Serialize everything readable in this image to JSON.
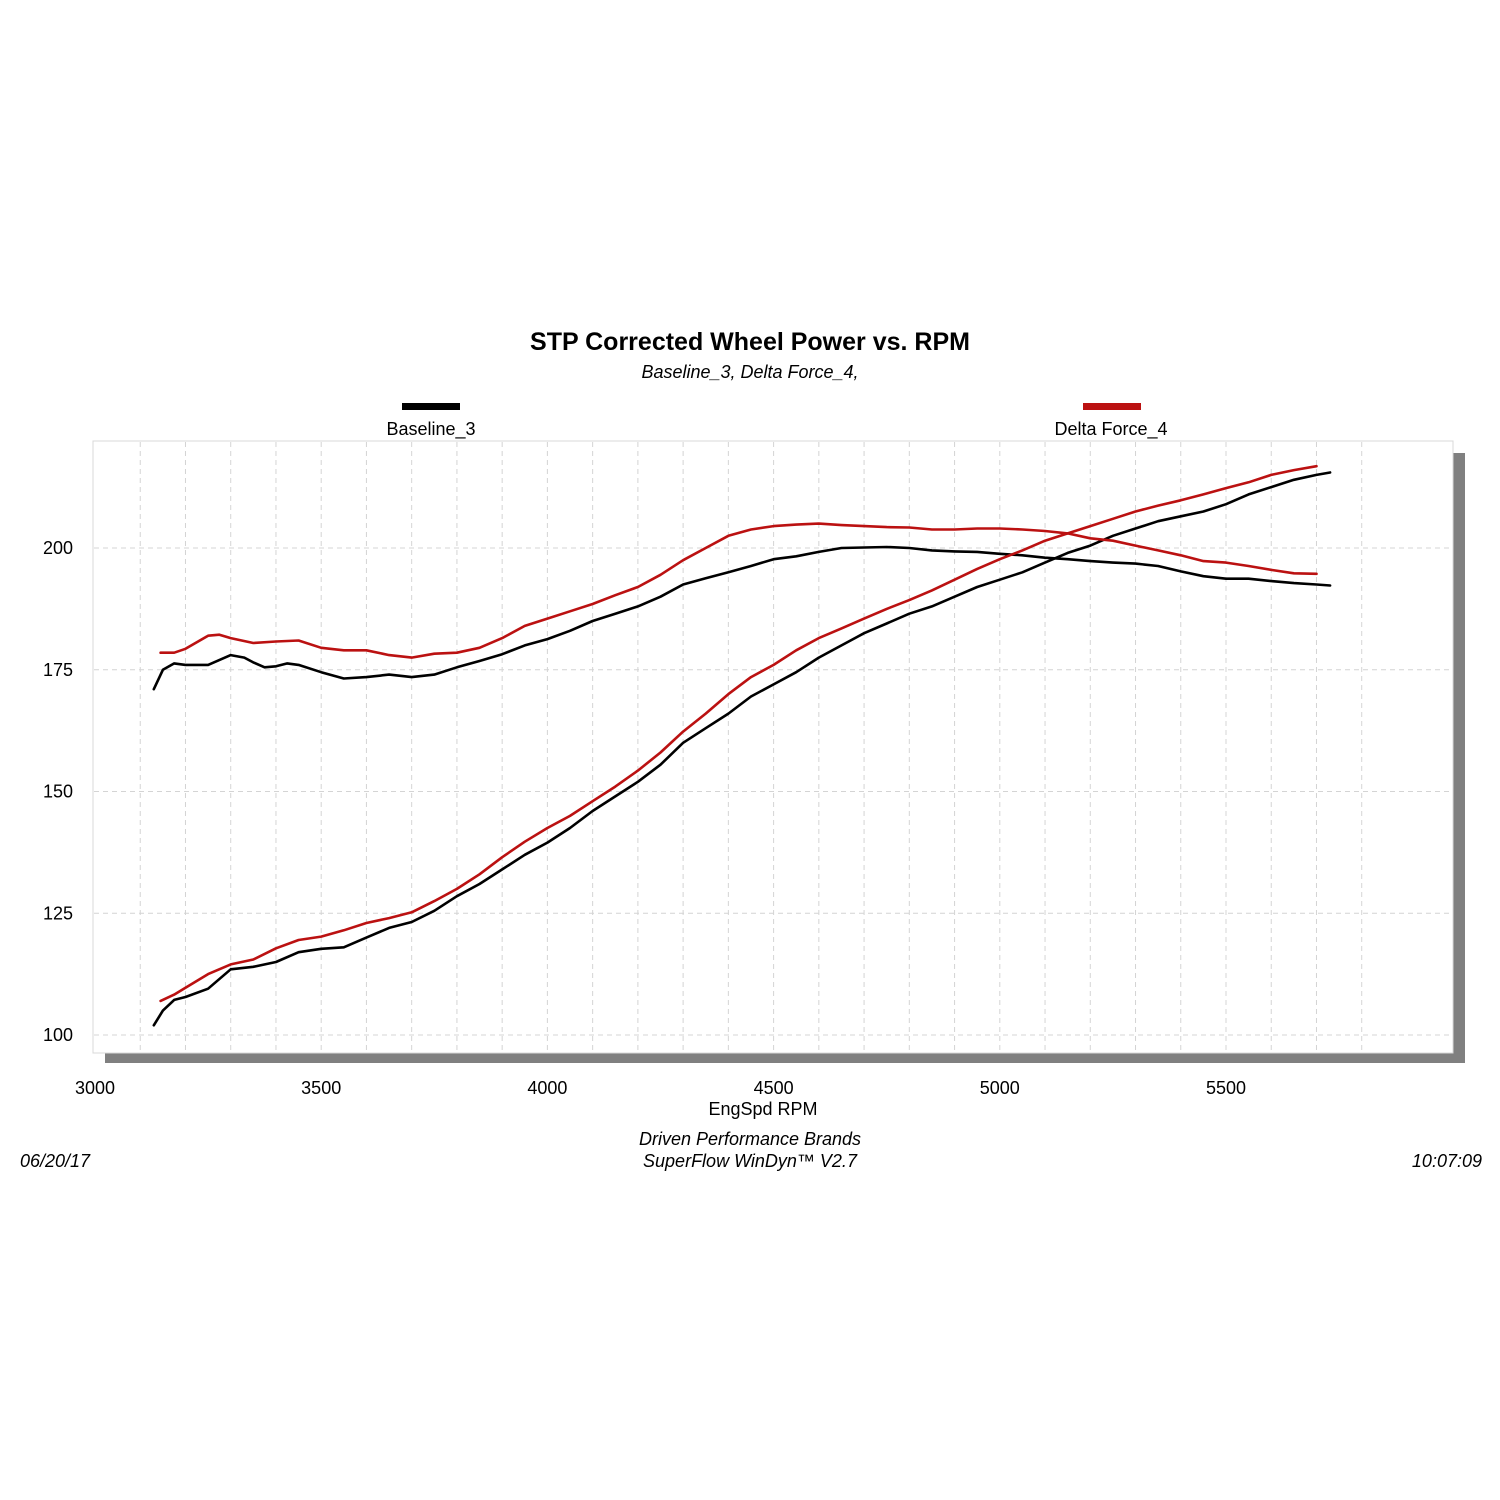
{
  "colors": {
    "baseline": "#000000",
    "delta": "#bb1111",
    "grid": "#d4d4d4",
    "frame": "#d8d8d8",
    "shadow": "#808080"
  },
  "footer": {
    "date": "06/20/17",
    "brand": "Driven Performance Brands",
    "software": "SuperFlow WinDyn™  V2.7",
    "time": "10:07:09"
  },
  "chart_data": {
    "type": "line",
    "title": "STP Corrected Wheel Power vs. RPM",
    "subtitle": "Baseline_3, Delta Force_4,",
    "xlabel": "EngSpd  RPM",
    "ylabel": "",
    "xlim": [
      3000,
      5850
    ],
    "ylim": [
      95,
      220
    ],
    "xticks": [
      3000,
      3500,
      4000,
      4500,
      5000,
      5500
    ],
    "yticks": [
      100,
      125,
      150,
      175,
      200
    ],
    "grid": true,
    "legend_placement": "top",
    "series": [
      {
        "name": "Baseline_3",
        "color_key": "baseline",
        "curves": [
          {
            "label": "power",
            "points": [
              [
                3130,
                102
              ],
              [
                3150,
                105
              ],
              [
                3175,
                107.2
              ],
              [
                3200,
                107.8
              ],
              [
                3250,
                109.5
              ],
              [
                3300,
                113.5
              ],
              [
                3350,
                114
              ],
              [
                3400,
                115
              ],
              [
                3450,
                117
              ],
              [
                3500,
                117.7
              ],
              [
                3550,
                118
              ],
              [
                3600,
                120
              ],
              [
                3650,
                122
              ],
              [
                3700,
                123.2
              ],
              [
                3750,
                125.5
              ],
              [
                3800,
                128.5
              ],
              [
                3850,
                131
              ],
              [
                3900,
                134
              ],
              [
                3950,
                137
              ],
              [
                4000,
                139.5
              ],
              [
                4050,
                142.5
              ],
              [
                4100,
                146
              ],
              [
                4150,
                149
              ],
              [
                4200,
                152
              ],
              [
                4250,
                155.5
              ],
              [
                4300,
                160
              ],
              [
                4350,
                163
              ],
              [
                4400,
                166
              ],
              [
                4450,
                169.5
              ],
              [
                4500,
                172
              ],
              [
                4550,
                174.5
              ],
              [
                4600,
                177.5
              ],
              [
                4650,
                180
              ],
              [
                4700,
                182.5
              ],
              [
                4750,
                184.5
              ],
              [
                4800,
                186.5
              ],
              [
                4850,
                188
              ],
              [
                4900,
                190
              ],
              [
                4950,
                192
              ],
              [
                5000,
                193.5
              ],
              [
                5050,
                195
              ],
              [
                5100,
                197
              ],
              [
                5150,
                199
              ],
              [
                5200,
                200.5
              ],
              [
                5250,
                202.5
              ],
              [
                5300,
                204
              ],
              [
                5350,
                205.5
              ],
              [
                5400,
                206.5
              ],
              [
                5450,
                207.5
              ],
              [
                5500,
                209
              ],
              [
                5550,
                211
              ],
              [
                5600,
                212.5
              ],
              [
                5650,
                214
              ],
              [
                5700,
                215
              ],
              [
                5730,
                215.5
              ]
            ]
          },
          {
            "label": "torque",
            "points": [
              [
                3130,
                171
              ],
              [
                3150,
                175
              ],
              [
                3175,
                176.3
              ],
              [
                3200,
                176
              ],
              [
                3250,
                176
              ],
              [
                3300,
                178
              ],
              [
                3330,
                177.5
              ],
              [
                3350,
                176.5
              ],
              [
                3375,
                175.5
              ],
              [
                3400,
                175.7
              ],
              [
                3425,
                176.3
              ],
              [
                3450,
                176
              ],
              [
                3500,
                174.5
              ],
              [
                3550,
                173.2
              ],
              [
                3600,
                173.5
              ],
              [
                3650,
                174
              ],
              [
                3700,
                173.5
              ],
              [
                3750,
                174
              ],
              [
                3800,
                175.5
              ],
              [
                3850,
                176.8
              ],
              [
                3900,
                178.2
              ],
              [
                3950,
                180
              ],
              [
                4000,
                181.3
              ],
              [
                4050,
                183
              ],
              [
                4100,
                185
              ],
              [
                4150,
                186.5
              ],
              [
                4200,
                188
              ],
              [
                4250,
                190
              ],
              [
                4300,
                192.5
              ],
              [
                4350,
                193.8
              ],
              [
                4400,
                195
              ],
              [
                4450,
                196.3
              ],
              [
                4500,
                197.7
              ],
              [
                4550,
                198.3
              ],
              [
                4600,
                199.2
              ],
              [
                4650,
                200
              ],
              [
                4700,
                200.1
              ],
              [
                4750,
                200.2
              ],
              [
                4800,
                200
              ],
              [
                4850,
                199.5
              ],
              [
                4900,
                199.3
              ],
              [
                4950,
                199.2
              ],
              [
                5000,
                198.8
              ],
              [
                5050,
                198.5
              ],
              [
                5100,
                198
              ],
              [
                5150,
                197.7
              ],
              [
                5200,
                197.3
              ],
              [
                5250,
                197
              ],
              [
                5300,
                196.8
              ],
              [
                5350,
                196.3
              ],
              [
                5400,
                195.2
              ],
              [
                5450,
                194.2
              ],
              [
                5500,
                193.7
              ],
              [
                5550,
                193.7
              ],
              [
                5600,
                193.2
              ],
              [
                5650,
                192.8
              ],
              [
                5700,
                192.5
              ],
              [
                5730,
                192.3
              ]
            ]
          }
        ]
      },
      {
        "name": "Delta Force_4",
        "color_key": "delta",
        "curves": [
          {
            "label": "power",
            "points": [
              [
                3145,
                107
              ],
              [
                3175,
                108.3
              ],
              [
                3200,
                109.7
              ],
              [
                3250,
                112.5
              ],
              [
                3300,
                114.5
              ],
              [
                3350,
                115.5
              ],
              [
                3400,
                117.8
              ],
              [
                3450,
                119.5
              ],
              [
                3500,
                120.2
              ],
              [
                3550,
                121.5
              ],
              [
                3600,
                123
              ],
              [
                3650,
                124
              ],
              [
                3700,
                125.2
              ],
              [
                3750,
                127.5
              ],
              [
                3800,
                130
              ],
              [
                3850,
                133
              ],
              [
                3900,
                136.5
              ],
              [
                3950,
                139.7
              ],
              [
                4000,
                142.5
              ],
              [
                4050,
                145
              ],
              [
                4100,
                148
              ],
              [
                4150,
                151
              ],
              [
                4200,
                154.3
              ],
              [
                4250,
                158
              ],
              [
                4300,
                162.3
              ],
              [
                4350,
                166
              ],
              [
                4400,
                170
              ],
              [
                4450,
                173.5
              ],
              [
                4500,
                176
              ],
              [
                4550,
                179
              ],
              [
                4600,
                181.5
              ],
              [
                4650,
                183.5
              ],
              [
                4700,
                185.5
              ],
              [
                4750,
                187.5
              ],
              [
                4800,
                189.3
              ],
              [
                4850,
                191.3
              ],
              [
                4900,
                193.5
              ],
              [
                4950,
                195.7
              ],
              [
                5000,
                197.7
              ],
              [
                5050,
                199.5
              ],
              [
                5100,
                201.5
              ],
              [
                5150,
                203
              ],
              [
                5200,
                204.5
              ],
              [
                5250,
                206
              ],
              [
                5300,
                207.5
              ],
              [
                5350,
                208.7
              ],
              [
                5400,
                209.8
              ],
              [
                5450,
                211
              ],
              [
                5500,
                212.3
              ],
              [
                5550,
                213.5
              ],
              [
                5600,
                215
              ],
              [
                5650,
                216
              ],
              [
                5700,
                216.8
              ]
            ]
          },
          {
            "label": "torque",
            "points": [
              [
                3145,
                178.5
              ],
              [
                3175,
                178.5
              ],
              [
                3200,
                179.3
              ],
              [
                3250,
                182
              ],
              [
                3275,
                182.2
              ],
              [
                3300,
                181.5
              ],
              [
                3350,
                180.5
              ],
              [
                3400,
                180.8
              ],
              [
                3450,
                181
              ],
              [
                3500,
                179.5
              ],
              [
                3550,
                179
              ],
              [
                3600,
                179
              ],
              [
                3650,
                178
              ],
              [
                3700,
                177.5
              ],
              [
                3750,
                178.3
              ],
              [
                3800,
                178.5
              ],
              [
                3850,
                179.5
              ],
              [
                3900,
                181.5
              ],
              [
                3950,
                184
              ],
              [
                4000,
                185.5
              ],
              [
                4050,
                187
              ],
              [
                4100,
                188.5
              ],
              [
                4150,
                190.3
              ],
              [
                4200,
                192
              ],
              [
                4250,
                194.5
              ],
              [
                4300,
                197.5
              ],
              [
                4350,
                200
              ],
              [
                4400,
                202.5
              ],
              [
                4450,
                203.8
              ],
              [
                4500,
                204.5
              ],
              [
                4550,
                204.8
              ],
              [
                4600,
                205
              ],
              [
                4650,
                204.7
              ],
              [
                4700,
                204.5
              ],
              [
                4750,
                204.3
              ],
              [
                4800,
                204.2
              ],
              [
                4850,
                203.8
              ],
              [
                4900,
                203.8
              ],
              [
                4950,
                204
              ],
              [
                5000,
                204
              ],
              [
                5050,
                203.8
              ],
              [
                5100,
                203.5
              ],
              [
                5150,
                203
              ],
              [
                5200,
                202
              ],
              [
                5250,
                201.5
              ],
              [
                5300,
                200.5
              ],
              [
                5350,
                199.5
              ],
              [
                5400,
                198.5
              ],
              [
                5450,
                197.3
              ],
              [
                5500,
                197
              ],
              [
                5550,
                196.3
              ],
              [
                5600,
                195.5
              ],
              [
                5650,
                194.8
              ],
              [
                5700,
                194.7
              ]
            ]
          }
        ]
      }
    ]
  }
}
